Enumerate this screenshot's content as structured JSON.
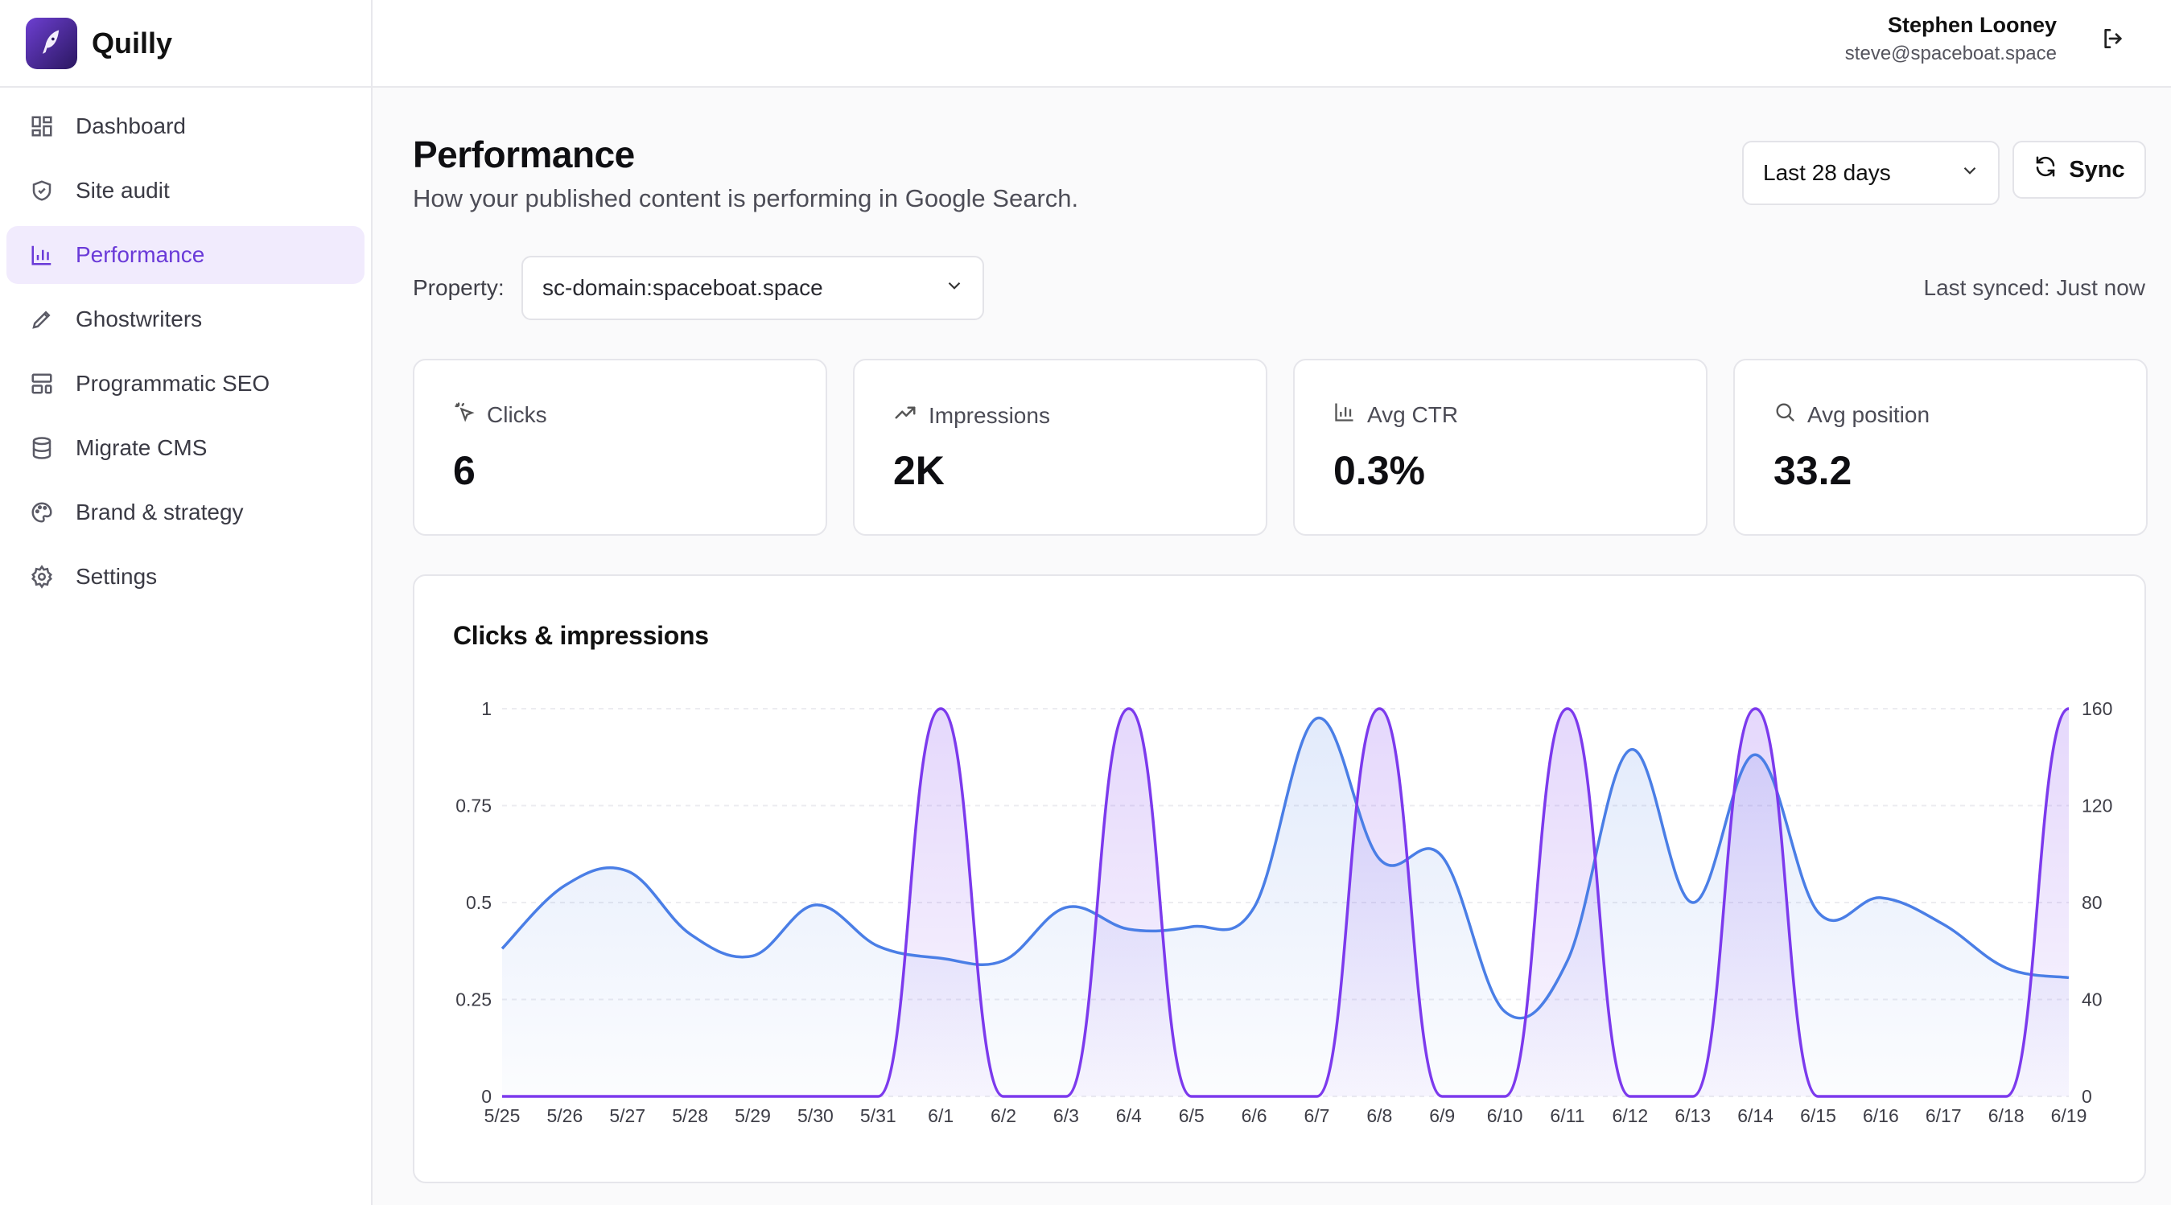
{
  "brand": {
    "name": "Quilly"
  },
  "sidebar": {
    "items": [
      {
        "label": "Dashboard",
        "icon": "dashboard-icon",
        "active": false
      },
      {
        "label": "Site audit",
        "icon": "shield-check-icon",
        "active": false
      },
      {
        "label": "Performance",
        "icon": "bar-chart-icon",
        "active": true
      },
      {
        "label": "Ghostwriters",
        "icon": "pencil-icon",
        "active": false
      },
      {
        "label": "Programmatic SEO",
        "icon": "layout-template-icon",
        "active": false
      },
      {
        "label": "Migrate CMS",
        "icon": "database-icon",
        "active": false
      },
      {
        "label": "Brand & strategy",
        "icon": "palette-icon",
        "active": false
      },
      {
        "label": "Settings",
        "icon": "gear-icon",
        "active": false
      }
    ]
  },
  "user": {
    "name": "Stephen Looney",
    "email": "steve@spaceboat.space"
  },
  "page": {
    "title": "Performance",
    "subtitle": "How your published content is performing in Google Search.",
    "range": "Last 28 days",
    "sync_label": "Sync",
    "property_label": "Property:",
    "property_value": "sc-domain:spaceboat.space",
    "last_synced": "Last synced: Just now"
  },
  "metrics": [
    {
      "label": "Clicks",
      "value": "6",
      "icon": "click-icon"
    },
    {
      "label": "Impressions",
      "value": "2K",
      "icon": "trending-up-icon"
    },
    {
      "label": "Avg CTR",
      "value": "0.3%",
      "icon": "bar-chart-icon"
    },
    {
      "label": "Avg position",
      "value": "33.2",
      "icon": "search-icon"
    }
  ],
  "colors": {
    "accent": "#6a3ad8",
    "clicks": "#7c3aed",
    "impressions": "#4a7ee6"
  },
  "chart_data": {
    "type": "line",
    "title": "Clicks & impressions",
    "categories": [
      "5/25",
      "5/26",
      "5/27",
      "5/28",
      "5/29",
      "5/30",
      "5/31",
      "6/1",
      "6/2",
      "6/3",
      "6/4",
      "6/5",
      "6/6",
      "6/7",
      "6/8",
      "6/9",
      "6/10",
      "6/11",
      "6/12",
      "6/13",
      "6/14",
      "6/15",
      "6/16",
      "6/17",
      "6/18",
      "6/19"
    ],
    "left_axis": {
      "ylim": [
        0,
        1
      ],
      "ticks": [
        "0",
        "0.25",
        "0.5",
        "0.75",
        "1"
      ]
    },
    "right_axis": {
      "ylim": [
        0,
        160
      ],
      "ticks": [
        "0",
        "40",
        "80",
        "120",
        "160"
      ]
    },
    "series": [
      {
        "axis": "left",
        "values": [
          0,
          0,
          0,
          0,
          0,
          0,
          0,
          1,
          0,
          0,
          1,
          0,
          0,
          0,
          1,
          0,
          0,
          1,
          0,
          0,
          1,
          0,
          0,
          0,
          0,
          1
        ]
      },
      {
        "axis": "right",
        "values": [
          61,
          87,
          93,
          67,
          58,
          79,
          62,
          57,
          56,
          78,
          69,
          70,
          78,
          156,
          98,
          99,
          35,
          56,
          143,
          80,
          141,
          76,
          82,
          71,
          53,
          49
        ]
      }
    ],
    "grid": "horizontal-dashed",
    "legend": "none"
  }
}
